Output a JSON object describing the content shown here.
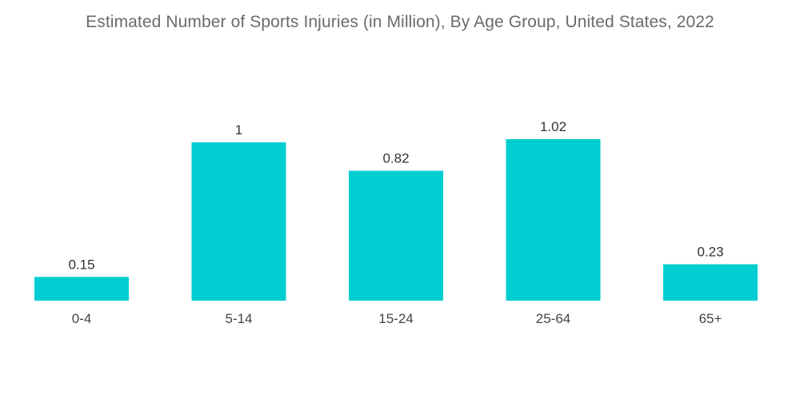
{
  "chart_data": {
    "type": "bar",
    "title": "Estimated Number of Sports Injuries (in Million), By Age Group, United States, 2022",
    "categories": [
      "0-4",
      "5-14",
      "15-24",
      "25-64",
      "65+"
    ],
    "values": [
      0.15,
      1,
      0.82,
      1.02,
      0.23
    ],
    "value_labels": [
      "0.15",
      "1",
      "0.82",
      "1.02",
      "0.23"
    ],
    "xlabel": "",
    "ylabel": "",
    "ylim": [
      0,
      1.02
    ],
    "grid": false,
    "legend": "none",
    "bar_color": "#00ced1"
  }
}
